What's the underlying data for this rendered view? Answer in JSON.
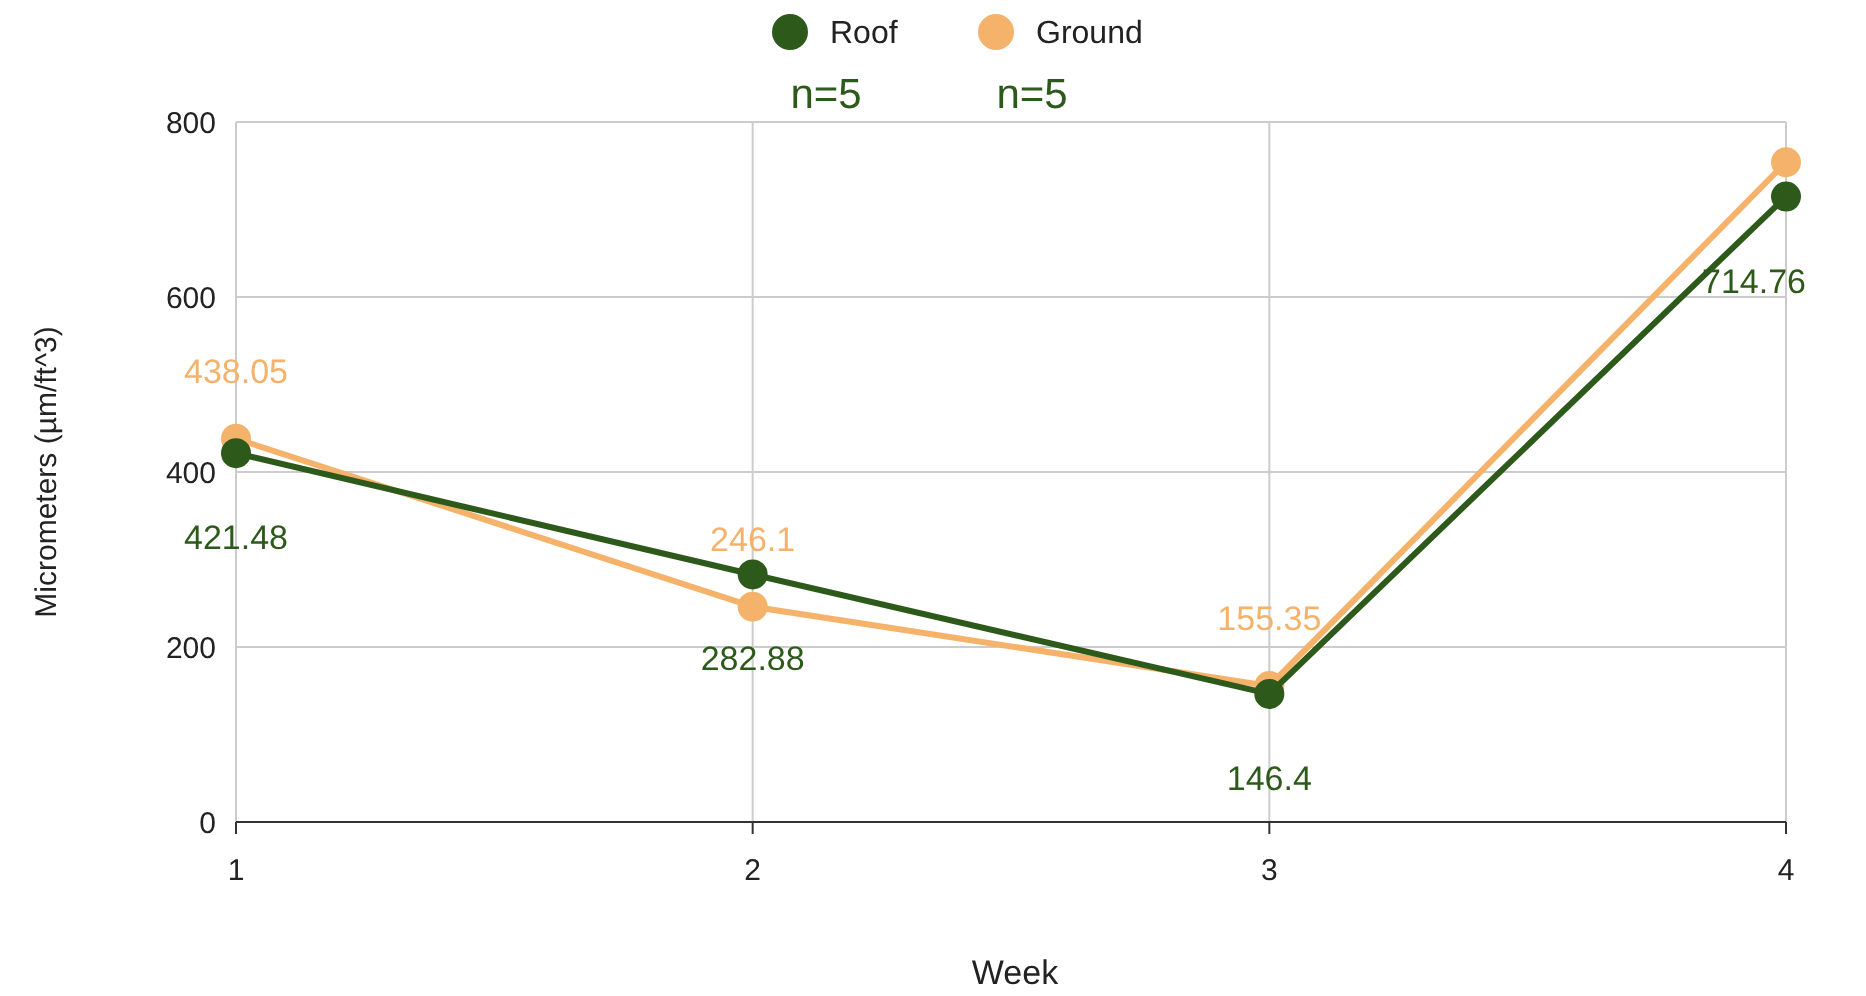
{
  "chart_data": {
    "type": "line",
    "xlabel": "Week",
    "ylabel": "Micrometers (µm/ft^3)",
    "x": [
      1,
      2,
      3,
      4
    ],
    "xlim": [
      1,
      4
    ],
    "xticks": [
      1,
      2,
      3,
      4
    ],
    "ylim": [
      0,
      800
    ],
    "yticks": [
      0,
      200,
      400,
      600,
      800
    ],
    "grid": true,
    "legend": "top",
    "marker": "circle",
    "line_style": "solid",
    "annotations": [
      "n=5",
      "n=5"
    ],
    "series": [
      {
        "name": "Roof",
        "color": "#2d5a1b",
        "values": [
          421.48,
          282.88,
          146.4,
          714.76
        ],
        "value_labels": [
          "421.48",
          "282.88",
          "146.4",
          "714.76"
        ]
      },
      {
        "name": "Ground",
        "color": "#f5b26b",
        "values": [
          438.05,
          246.1,
          155.35,
          754
        ],
        "value_labels": [
          "438.05",
          "246.1",
          "155.35",
          null
        ]
      }
    ]
  }
}
